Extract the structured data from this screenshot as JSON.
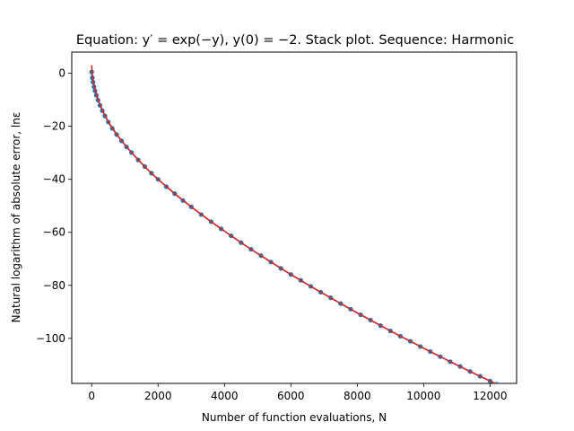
{
  "chart_data": {
    "type": "line",
    "title": "Equation: y′ = exp(−y), y(0) = −2. Stack plot. Sequence: Harmonic",
    "xlabel": "Number of function evaluations, N",
    "ylabel": "Natural logarithm of absolute error, lnε",
    "xlim": [
      -600,
      12800
    ],
    "ylim": [
      -117,
      8
    ],
    "xticks": [
      0,
      2000,
      4000,
      6000,
      8000,
      10000,
      12000
    ],
    "yticks": [
      0,
      -20,
      -40,
      -60,
      -80,
      -100
    ],
    "grid": false,
    "series": [
      {
        "name": "",
        "style": "markers-line",
        "color": "#1f77b4",
        "x": [
          0,
          20,
          40,
          70,
          100,
          140,
          190,
          250,
          320,
          400,
          500,
          620,
          750,
          900,
          1050,
          1200,
          1400,
          1600,
          1800,
          2000,
          2250,
          2500,
          2750,
          3000,
          3300,
          3600,
          3900,
          4200,
          4500,
          4800,
          5100,
          5400,
          5700,
          6000,
          6300,
          6600,
          6900,
          7200,
          7500,
          7800,
          8100,
          8400,
          8700,
          9000,
          9300,
          9600,
          9900,
          10200,
          10500,
          10800,
          11100,
          11400,
          11700,
          12000,
          12200
        ],
        "y": [
          0.5,
          -1.7,
          -3.3,
          -5.1,
          -6.6,
          -8.3,
          -10.1,
          -12.1,
          -14.1,
          -16.1,
          -18.4,
          -20.8,
          -23.1,
          -25.5,
          -27.8,
          -29.9,
          -32.7,
          -35.2,
          -37.7,
          -40.0,
          -42.8,
          -45.4,
          -48.0,
          -50.4,
          -53.3,
          -56.0,
          -58.7,
          -61.3,
          -63.9,
          -66.4,
          -68.8,
          -71.2,
          -73.6,
          -75.9,
          -78.1,
          -80.4,
          -82.6,
          -84.7,
          -86.9,
          -89.0,
          -91.1,
          -93.1,
          -95.2,
          -97.2,
          -99.2,
          -101.1,
          -103.1,
          -105.0,
          -106.9,
          -108.8,
          -110.6,
          -112.5,
          -114.3,
          -116.1,
          -117.3
        ]
      },
      {
        "name": "",
        "style": "line",
        "color": "#d62728",
        "x": [
          0,
          20,
          40,
          70,
          100,
          140,
          190,
          250,
          320,
          400,
          500,
          620,
          750,
          900,
          1050,
          1200,
          1400,
          1600,
          1800,
          2000,
          2500,
          3000,
          3600,
          4200,
          4800,
          5400,
          6000,
          6600,
          7200,
          7800,
          8400,
          9000,
          9600,
          10200,
          10800,
          11400,
          12000,
          12200
        ],
        "y": [
          3.0,
          -0.6,
          -2.4,
          -4.3,
          -6.0,
          -7.8,
          -9.7,
          -11.8,
          -13.8,
          -15.9,
          -18.2,
          -20.6,
          -23.0,
          -25.4,
          -27.7,
          -29.9,
          -32.6,
          -35.2,
          -37.7,
          -40.0,
          -45.4,
          -50.4,
          -56.0,
          -61.3,
          -66.4,
          -71.2,
          -75.9,
          -80.4,
          -84.7,
          -89.0,
          -93.1,
          -97.2,
          -101.1,
          -105.0,
          -108.8,
          -112.5,
          -116.1,
          -117.3
        ]
      }
    ]
  }
}
